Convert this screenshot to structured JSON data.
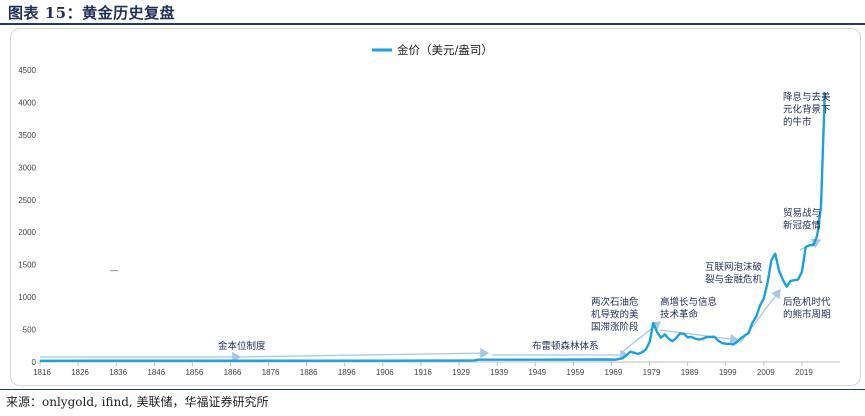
{
  "page": {
    "figure_title": "图表 15：黄金历史复盘",
    "source": "来源：onlygold, ifind, 美联储，华福证券研究所"
  },
  "colors": {
    "line": "#1aa2dc",
    "arrow": "#a9c7e2",
    "text": "#1f2f57"
  },
  "chart_data": {
    "type": "line",
    "title": "",
    "xlabel": "",
    "ylabel": "",
    "legend": "top-center",
    "grid": false,
    "ylim": [
      0,
      4500
    ],
    "xlim": [
      1816,
      2025
    ],
    "yticks": [
      0,
      500,
      1000,
      1500,
      2000,
      2500,
      3000,
      3500,
      4000,
      4500
    ],
    "xticks": [
      1816,
      1826,
      1836,
      1846,
      1856,
      1866,
      1876,
      1886,
      1896,
      1906,
      1916,
      1929,
      1939,
      1949,
      1959,
      1969,
      1979,
      1989,
      1999,
      2009,
      2019
    ],
    "series": [
      {
        "name": "金价（美元/盎司）",
        "x": [
          1816,
          1830,
          1850,
          1870,
          1890,
          1910,
          1933,
          1934,
          1950,
          1968,
          1970,
          1972,
          1974,
          1975,
          1976,
          1977,
          1978,
          1979,
          1980,
          1981,
          1982,
          1983,
          1984,
          1985,
          1986,
          1987,
          1988,
          1989,
          1990,
          1991,
          1992,
          1993,
          1994,
          1995,
          1996,
          1997,
          1998,
          1999,
          2000,
          2001,
          2002,
          2003,
          2004,
          2005,
          2006,
          2007,
          2008,
          2009,
          2010,
          2011,
          2012,
          2013,
          2014,
          2015,
          2016,
          2017,
          2018,
          2019,
          2020,
          2021,
          2022,
          2023,
          2024,
          2025
        ],
        "values": [
          19,
          20,
          20,
          20,
          20,
          20,
          25,
          35,
          35,
          39,
          36,
          58,
          160,
          140,
          125,
          148,
          190,
          300,
          600,
          460,
          375,
          425,
          360,
          320,
          370,
          440,
          435,
          380,
          385,
          360,
          345,
          360,
          385,
          385,
          390,
          330,
          295,
          280,
          280,
          270,
          310,
          365,
          410,
          445,
          605,
          700,
          870,
          975,
          1225,
          1570,
          1670,
          1410,
          1265,
          1160,
          1250,
          1260,
          1270,
          1390,
          1770,
          1800,
          1800,
          1940,
          2390,
          4150
        ]
      }
    ],
    "annotations": [
      {
        "id": "gold-standard",
        "lines": [
          "金本位制度"
        ]
      },
      {
        "id": "bretton-woods",
        "lines": [
          "布雷顿森林体系"
        ]
      },
      {
        "id": "oil-crisis",
        "lines": [
          "两次石油危",
          "机导致的美",
          "国滞涨阶段"
        ]
      },
      {
        "id": "it-revolution",
        "lines": [
          "高增长与信息",
          "技术革命"
        ]
      },
      {
        "id": "dotcom-gfc",
        "lines": [
          "互联网泡沫破",
          "裂与金融危机"
        ]
      },
      {
        "id": "trade-war",
        "lines": [
          "贸易战与",
          "新冠疫情"
        ]
      },
      {
        "id": "rate-cut",
        "lines": [
          "降息与去美",
          "元化背景下",
          "的牛市"
        ]
      },
      {
        "id": "post-crisis",
        "lines": [
          "后危机时代",
          "的熊市周期"
        ]
      }
    ]
  }
}
